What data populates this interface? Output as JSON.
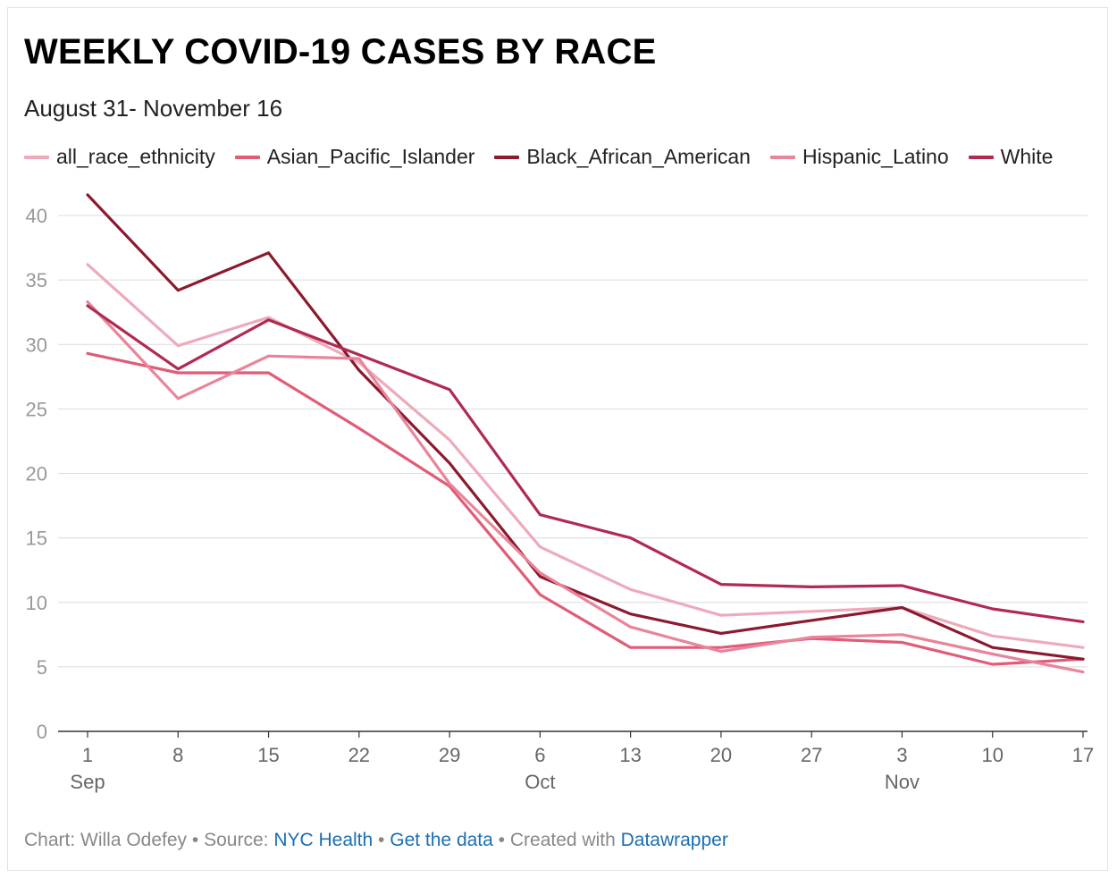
{
  "title": "WEEKLY COVID-19 CASES BY RACE",
  "subtitle": "August 31- November 16",
  "footer": {
    "credit": "Chart: Willa Odefey",
    "sep1": " • ",
    "source_prefix": "Source: ",
    "source_link": "NYC Health",
    "sep2": " • ",
    "data_link": "Get the data",
    "sep3": " • ",
    "created_prefix": "Created with ",
    "created_link": "Datawrapper"
  },
  "chart_data": {
    "type": "line",
    "x_tick_labels": [
      "1",
      "8",
      "15",
      "22",
      "29",
      "6",
      "13",
      "20",
      "27",
      "3",
      "10",
      "17"
    ],
    "x_month_labels": [
      {
        "index": 0,
        "label": "Sep"
      },
      {
        "index": 5,
        "label": "Oct"
      },
      {
        "index": 9,
        "label": "Nov"
      }
    ],
    "x": [
      "Sep 1",
      "Sep 8",
      "Sep 15",
      "Sep 22",
      "Sep 29",
      "Oct 6",
      "Oct 13",
      "Oct 20",
      "Oct 27",
      "Nov 3",
      "Nov 10",
      "Nov 17"
    ],
    "ylim": [
      0,
      42
    ],
    "y_ticks": [
      0,
      5,
      10,
      15,
      20,
      25,
      30,
      35,
      40
    ],
    "grid": true,
    "legend_position": "top",
    "series": [
      {
        "name": "all_race_ethnicity",
        "color": "#eeaabb",
        "values": [
          36.2,
          29.9,
          32.1,
          28.6,
          22.6,
          14.3,
          11.0,
          9.0,
          9.3,
          9.6,
          7.4,
          6.5
        ]
      },
      {
        "name": "Asian_Pacific_Islander",
        "color": "#e05c77",
        "values": [
          29.3,
          27.8,
          27.8,
          23.5,
          19.0,
          10.6,
          6.5,
          6.5,
          7.2,
          6.9,
          5.2,
          5.6
        ]
      },
      {
        "name": "Black_African_American",
        "color": "#8b1a2e",
        "values": [
          41.6,
          34.2,
          37.1,
          28.0,
          20.8,
          12.0,
          9.1,
          7.6,
          8.6,
          9.6,
          6.5,
          5.6
        ]
      },
      {
        "name": "Hispanic_Latino",
        "color": "#e9849a",
        "values": [
          33.3,
          25.8,
          29.1,
          28.9,
          19.2,
          12.3,
          8.1,
          6.2,
          7.3,
          7.5,
          6.0,
          4.6
        ]
      },
      {
        "name": "White",
        "color": "#b02a51",
        "values": [
          33.0,
          28.1,
          31.9,
          29.2,
          26.5,
          16.8,
          15.0,
          11.4,
          11.2,
          11.3,
          9.5,
          8.5
        ]
      }
    ]
  }
}
